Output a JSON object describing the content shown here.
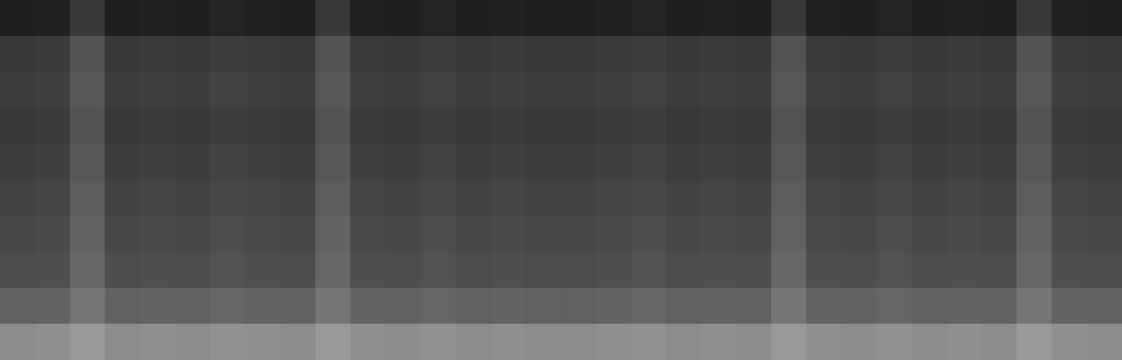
{
  "chart_data": {
    "type": "heatmap",
    "tick_labels": false,
    "grid": false,
    "color_range": [
      0,
      100
    ],
    "cells": [
      [
        12,
        13,
        22,
        12,
        13,
        12,
        14,
        13,
        12,
        22,
        13,
        12,
        14,
        12,
        13,
        12,
        12,
        13,
        14,
        12,
        13,
        12,
        22,
        13,
        12,
        14,
        12,
        13,
        12,
        22,
        13,
        12
      ],
      [
        22,
        23,
        32,
        22,
        23,
        22,
        24,
        23,
        22,
        32,
        23,
        22,
        24,
        22,
        23,
        22,
        22,
        23,
        24,
        22,
        23,
        22,
        32,
        23,
        22,
        24,
        22,
        23,
        22,
        32,
        23,
        22
      ],
      [
        24,
        25,
        34,
        24,
        25,
        24,
        26,
        25,
        24,
        34,
        25,
        24,
        26,
        24,
        25,
        24,
        24,
        25,
        26,
        24,
        25,
        24,
        34,
        25,
        24,
        26,
        24,
        25,
        24,
        34,
        25,
        24
      ],
      [
        22,
        23,
        32,
        22,
        23,
        22,
        24,
        23,
        22,
        32,
        23,
        22,
        24,
        22,
        23,
        22,
        22,
        23,
        24,
        22,
        23,
        22,
        32,
        23,
        22,
        24,
        22,
        23,
        22,
        32,
        23,
        22
      ],
      [
        24,
        25,
        34,
        24,
        25,
        24,
        26,
        25,
        24,
        34,
        25,
        24,
        26,
        24,
        25,
        24,
        24,
        25,
        26,
        24,
        25,
        24,
        34,
        25,
        24,
        26,
        24,
        25,
        24,
        34,
        25,
        24
      ],
      [
        26,
        27,
        36,
        26,
        27,
        26,
        28,
        27,
        26,
        36,
        27,
        26,
        28,
        26,
        27,
        26,
        26,
        27,
        28,
        26,
        27,
        26,
        36,
        27,
        26,
        28,
        26,
        27,
        26,
        36,
        27,
        26
      ],
      [
        28,
        29,
        38,
        28,
        29,
        28,
        30,
        29,
        28,
        38,
        29,
        28,
        30,
        28,
        29,
        28,
        28,
        29,
        30,
        28,
        29,
        28,
        38,
        29,
        28,
        30,
        28,
        29,
        28,
        38,
        29,
        28
      ],
      [
        30,
        31,
        40,
        30,
        31,
        30,
        32,
        31,
        30,
        40,
        31,
        30,
        32,
        30,
        31,
        30,
        30,
        31,
        32,
        30,
        31,
        30,
        40,
        31,
        30,
        32,
        30,
        31,
        30,
        40,
        31,
        30
      ],
      [
        38,
        39,
        46,
        38,
        39,
        38,
        40,
        39,
        38,
        46,
        39,
        38,
        40,
        38,
        39,
        38,
        38,
        39,
        40,
        38,
        39,
        38,
        46,
        39,
        38,
        40,
        38,
        39,
        38,
        46,
        39,
        38
      ],
      [
        55,
        56,
        60,
        55,
        56,
        55,
        57,
        56,
        55,
        60,
        56,
        55,
        57,
        55,
        56,
        55,
        55,
        56,
        57,
        55,
        56,
        55,
        60,
        56,
        55,
        57,
        55,
        56,
        55,
        60,
        56,
        55
      ]
    ]
  }
}
